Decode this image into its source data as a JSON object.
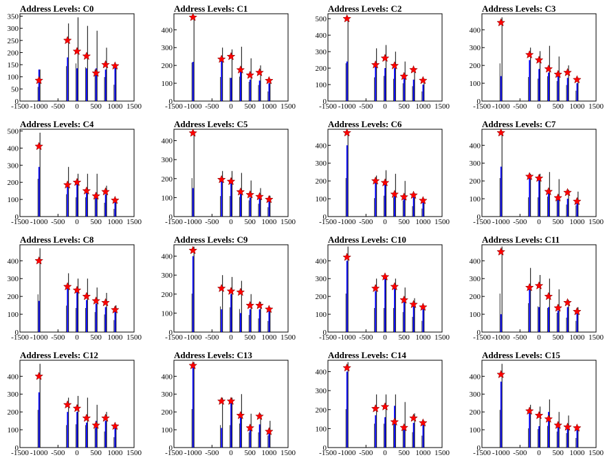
{
  "figure": {
    "colors": {
      "axis": "#000000",
      "histogram": "#000000",
      "mean_bar": "#0000ff",
      "marker": "#ff0000",
      "marker_edge": "#7a0000"
    }
  },
  "chart_data": [
    {
      "type": "bar",
      "title": "Address Levels: C0",
      "xlim": [
        -1500,
        1500
      ],
      "ylim": [
        0,
        360
      ],
      "xticks": [
        "-1500",
        "-1000",
        "-500",
        "0",
        "500",
        "1000",
        "1500"
      ],
      "yticks": [
        "0",
        "50",
        "100",
        "150",
        "200",
        "250",
        "300",
        "350"
      ],
      "levels": [
        -1000,
        -250,
        0,
        250,
        500,
        750,
        1000
      ],
      "peaks": [
        130,
        320,
        345,
        310,
        290,
        220,
        150
      ],
      "means": [
        130,
        180,
        135,
        135,
        135,
        130,
        145
      ],
      "markers": [
        85,
        250,
        205,
        185,
        115,
        150,
        145
      ]
    },
    {
      "type": "bar",
      "title": "Address Levels: C1",
      "xlim": [
        -1500,
        1500
      ],
      "ylim": [
        0,
        490
      ],
      "xticks": [
        "-1500",
        "-1000",
        "-500",
        "0",
        "500",
        "1000",
        "1500"
      ],
      "yticks": [
        "0",
        "100",
        "200",
        "300",
        "400"
      ],
      "levels": [
        -1000,
        -250,
        0,
        250,
        500,
        750,
        1000
      ],
      "peaks": [
        480,
        300,
        290,
        305,
        240,
        200,
        120
      ],
      "means": [
        220,
        230,
        130,
        170,
        120,
        115,
        100
      ],
      "markers": [
        470,
        235,
        250,
        175,
        145,
        160,
        115
      ]
    },
    {
      "type": "bar",
      "title": "Address Levels: C2",
      "xlim": [
        -1500,
        1500
      ],
      "ylim": [
        0,
        530
      ],
      "xticks": [
        "-1500",
        "-1000",
        "-500",
        "0",
        "500",
        "1000",
        "1500"
      ],
      "yticks": [
        "0",
        "100",
        "200",
        "300",
        "400",
        "500"
      ],
      "levels": [
        -1000,
        -250,
        0,
        250,
        500,
        750,
        1000
      ],
      "peaks": [
        510,
        320,
        340,
        300,
        240,
        200,
        130
      ],
      "means": [
        240,
        230,
        200,
        200,
        140,
        130,
        100
      ],
      "markers": [
        500,
        220,
        260,
        215,
        150,
        190,
        125
      ]
    },
    {
      "type": "bar",
      "title": "Address Levels: C3",
      "xlim": [
        -1500,
        1500
      ],
      "ylim": [
        0,
        490
      ],
      "xticks": [
        "-1500",
        "-1000",
        "-500",
        "0",
        "500",
        "1000",
        "1500"
      ],
      "yticks": [
        "0",
        "100",
        "200",
        "300",
        "400"
      ],
      "levels": [
        -1000,
        -250,
        0,
        250,
        500,
        750,
        1000
      ],
      "peaks": [
        470,
        300,
        280,
        310,
        250,
        200,
        130
      ],
      "means": [
        140,
        230,
        180,
        160,
        140,
        130,
        100
      ],
      "markers": [
        440,
        260,
        230,
        180,
        150,
        160,
        120
      ]
    },
    {
      "type": "bar",
      "title": "Address Levels: C4",
      "xlim": [
        -1500,
        1500
      ],
      "ylim": [
        0,
        510
      ],
      "xticks": [
        "-1500",
        "-1000",
        "-500",
        "0",
        "500",
        "1000",
        "1500"
      ],
      "yticks": [
        "0",
        "100",
        "200",
        "300",
        "400",
        "500"
      ],
      "levels": [
        -1000,
        -250,
        0,
        250,
        500,
        750,
        1000
      ],
      "peaks": [
        490,
        290,
        250,
        250,
        250,
        180,
        100
      ],
      "means": [
        290,
        180,
        200,
        160,
        140,
        130,
        90
      ],
      "markers": [
        410,
        185,
        200,
        150,
        120,
        145,
        95
      ]
    },
    {
      "type": "bar",
      "title": "Address Levels: C5",
      "xlim": [
        -1500,
        1500
      ],
      "ylim": [
        0,
        460
      ],
      "xticks": [
        "-1500",
        "-1000",
        "-500",
        "0",
        "500",
        "1000",
        "1500"
      ],
      "yticks": [
        "0",
        "100",
        "200",
        "300",
        "400"
      ],
      "levels": [
        -1000,
        -250,
        0,
        250,
        500,
        750,
        1000
      ],
      "peaks": [
        450,
        240,
        240,
        230,
        190,
        150,
        110
      ],
      "means": [
        150,
        190,
        180,
        140,
        100,
        100,
        85
      ],
      "markers": [
        440,
        195,
        185,
        130,
        115,
        105,
        90
      ]
    },
    {
      "type": "bar",
      "title": "Address Levels: C6",
      "xlim": [
        -1500,
        1500
      ],
      "ylim": [
        0,
        490
      ],
      "xticks": [
        "-1500",
        "-1000",
        "-500",
        "0",
        "500",
        "1000",
        "1500"
      ],
      "yticks": [
        "0",
        "100",
        "200",
        "300",
        "400"
      ],
      "levels": [
        -1000,
        -250,
        0,
        250,
        500,
        750,
        1000
      ],
      "peaks": [
        480,
        230,
        260,
        240,
        200,
        130,
        100
      ],
      "means": [
        400,
        200,
        190,
        120,
        100,
        110,
        90
      ],
      "markers": [
        470,
        200,
        190,
        125,
        110,
        120,
        90
      ]
    },
    {
      "type": "bar",
      "title": "Address Levels: C7",
      "xlim": [
        -1500,
        1500
      ],
      "ylim": [
        0,
        490
      ],
      "xticks": [
        "-1500",
        "-1000",
        "-500",
        "0",
        "500",
        "1000",
        "1500"
      ],
      "yticks": [
        "0",
        "100",
        "200",
        "300",
        "400"
      ],
      "levels": [
        -1000,
        -250,
        0,
        250,
        500,
        750,
        1000
      ],
      "peaks": [
        480,
        240,
        240,
        250,
        210,
        150,
        140
      ],
      "means": [
        280,
        220,
        210,
        140,
        120,
        100,
        90
      ],
      "markers": [
        470,
        225,
        215,
        140,
        105,
        135,
        85
      ]
    },
    {
      "type": "bar",
      "title": "Address Levels: C8",
      "xlim": [
        -1500,
        1500
      ],
      "ylim": [
        0,
        490
      ],
      "xticks": [
        "-1500",
        "-1000",
        "-500",
        "0",
        "500",
        "1000",
        "1500"
      ],
      "yticks": [
        "0",
        "100",
        "200",
        "300",
        "400"
      ],
      "levels": [
        -1000,
        -250,
        0,
        250,
        500,
        750,
        1000
      ],
      "peaks": [
        470,
        330,
        300,
        300,
        250,
        220,
        150
      ],
      "means": [
        175,
        260,
        230,
        180,
        160,
        140,
        120
      ],
      "markers": [
        400,
        255,
        235,
        200,
        175,
        165,
        125
      ]
    },
    {
      "type": "bar",
      "title": "Address Levels: C9",
      "xlim": [
        -1500,
        1500
      ],
      "ylim": [
        0,
        460
      ],
      "xticks": [
        "-1500",
        "-1000",
        "-500",
        "0",
        "500",
        "1000",
        "1500"
      ],
      "yticks": [
        "0",
        "100",
        "200",
        "300",
        "400"
      ],
      "levels": [
        -1000,
        -250,
        0,
        250,
        500,
        750,
        1000
      ],
      "peaks": [
        450,
        300,
        290,
        270,
        200,
        160,
        130
      ],
      "means": [
        400,
        120,
        200,
        100,
        120,
        120,
        110
      ],
      "markers": [
        430,
        230,
        215,
        210,
        140,
        140,
        120
      ]
    },
    {
      "type": "bar",
      "title": "Address Levels: C10",
      "xlim": [
        -1500,
        1500
      ],
      "ylim": [
        0,
        490
      ],
      "xticks": [
        "-1500",
        "-1000",
        "-500",
        "0",
        "500",
        "1000",
        "1500"
      ],
      "yticks": [
        "0",
        "100",
        "200",
        "300",
        "400"
      ],
      "levels": [
        -1000,
        -250,
        0,
        250,
        500,
        750,
        1000
      ],
      "peaks": [
        480,
        300,
        300,
        300,
        250,
        190,
        140
      ],
      "means": [
        400,
        230,
        310,
        260,
        180,
        160,
        140
      ],
      "markers": [
        420,
        245,
        310,
        255,
        180,
        155,
        140
      ]
    },
    {
      "type": "bar",
      "title": "Address Levels: C11",
      "xlim": [
        -1500,
        1500
      ],
      "ylim": [
        0,
        490
      ],
      "xticks": [
        "-1500",
        "-1000",
        "-500",
        "0",
        "500",
        "1000",
        "1500"
      ],
      "yticks": [
        "0",
        "100",
        "200",
        "300",
        "400"
      ],
      "levels": [
        -1000,
        -250,
        0,
        250,
        500,
        750,
        1000
      ],
      "peaks": [
        480,
        360,
        320,
        300,
        240,
        180,
        140
      ],
      "means": [
        100,
        250,
        140,
        140,
        120,
        140,
        120
      ],
      "markers": [
        450,
        250,
        260,
        200,
        135,
        165,
        115
      ]
    },
    {
      "type": "bar",
      "title": "Address Levels: C12",
      "xlim": [
        -1500,
        1500
      ],
      "ylim": [
        0,
        490
      ],
      "xticks": [
        "-1500",
        "-1000",
        "-500",
        "0",
        "500",
        "1000",
        "1500"
      ],
      "yticks": [
        "0",
        "100",
        "200",
        "300",
        "400"
      ],
      "levels": [
        -1000,
        -250,
        0,
        250,
        500,
        750,
        1000
      ],
      "peaks": [
        470,
        280,
        290,
        280,
        240,
        200,
        130
      ],
      "means": [
        310,
        200,
        200,
        140,
        150,
        150,
        130
      ],
      "markers": [
        400,
        240,
        220,
        165,
        125,
        165,
        120
      ]
    },
    {
      "type": "bar",
      "title": "Address Levels: C13",
      "xlim": [
        -1500,
        1500
      ],
      "ylim": [
        0,
        490
      ],
      "xticks": [
        "-1500",
        "-1000",
        "-500",
        "0",
        "500",
        "1000",
        "1500"
      ],
      "yticks": [
        "0",
        "100",
        "200",
        "300",
        "400"
      ],
      "levels": [
        -1000,
        -250,
        0,
        250,
        500,
        750,
        1000
      ],
      "peaks": [
        480,
        280,
        280,
        300,
        190,
        190,
        150
      ],
      "means": [
        470,
        110,
        260,
        170,
        110,
        130,
        90
      ],
      "markers": [
        460,
        260,
        260,
        180,
        110,
        175,
        90
      ]
    },
    {
      "type": "bar",
      "title": "Address Levels: C14",
      "xlim": [
        -1500,
        1500
      ],
      "ylim": [
        0,
        460
      ],
      "xticks": [
        "-1500",
        "-1000",
        "-500",
        "0",
        "500",
        "1000",
        "1500"
      ],
      "yticks": [
        "0",
        "100",
        "200",
        "300",
        "400"
      ],
      "levels": [
        -1000,
        -250,
        0,
        250,
        500,
        750,
        1000
      ],
      "peaks": [
        450,
        280,
        280,
        280,
        240,
        180,
        140
      ],
      "means": [
        400,
        170,
        160,
        220,
        100,
        130,
        120
      ],
      "markers": [
        420,
        205,
        215,
        135,
        105,
        155,
        130
      ]
    },
    {
      "type": "bar",
      "title": "Address Levels: C15",
      "xlim": [
        -1500,
        1500
      ],
      "ylim": [
        0,
        490
      ],
      "xticks": [
        "-1500",
        "-1000",
        "-500",
        "0",
        "500",
        "1000",
        "1500"
      ],
      "yticks": [
        "0",
        "100",
        "200",
        "300",
        "400"
      ],
      "levels": [
        -1000,
        -250,
        0,
        250,
        500,
        750,
        1000
      ],
      "peaks": [
        470,
        240,
        230,
        270,
        200,
        180,
        120
      ],
      "means": [
        370,
        200,
        120,
        200,
        120,
        110,
        110
      ],
      "markers": [
        410,
        205,
        180,
        160,
        125,
        115,
        110
      ]
    }
  ]
}
